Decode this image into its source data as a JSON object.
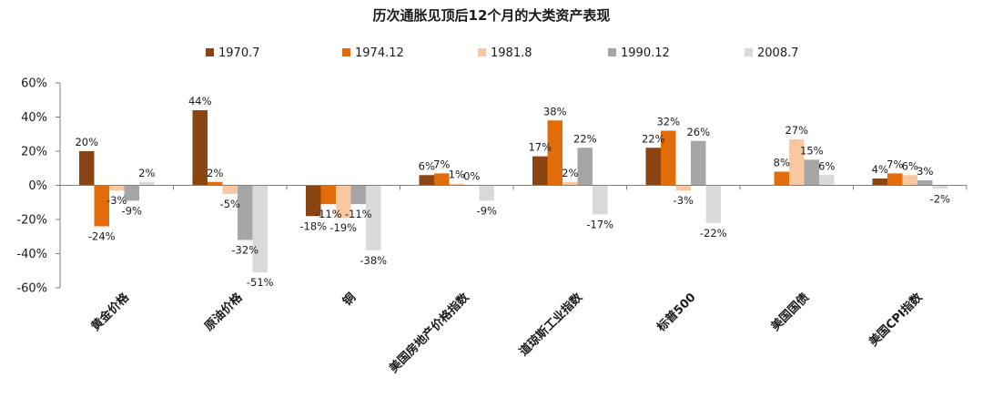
{
  "chart_data": {
    "type": "bar",
    "title": "历次通胀见顶后12个月的大类资产表现",
    "categories": [
      "黄金价格",
      "原油价格",
      "铜",
      "美国房地产价格指数",
      "道琼斯工业指数",
      "标普500",
      "美国国债",
      "美国CPI指数"
    ],
    "series": [
      {
        "name": "1970.7",
        "color": "#8B4513",
        "values": [
          20,
          44,
          -18,
          6,
          17,
          22,
          0,
          4
        ]
      },
      {
        "name": "1974.12",
        "color": "#E36C0A",
        "values": [
          -24,
          2,
          -11,
          7,
          38,
          32,
          8,
          7
        ]
      },
      {
        "name": "1981.8",
        "color": "#FAC8A0",
        "values": [
          -3,
          -5,
          -19,
          1,
          2,
          -3,
          27,
          6
        ]
      },
      {
        "name": "1990.12",
        "color": "#A6A6A6",
        "values": [
          -9,
          -32,
          -11,
          0,
          22,
          26,
          15,
          3
        ]
      },
      {
        "name": "2008.7",
        "color": "#D9D9D9",
        "values": [
          2,
          -51,
          -38,
          -9,
          -17,
          -22,
          6,
          -2
        ]
      }
    ],
    "labels": [
      [
        "20%",
        "44%",
        "-18%",
        "6%",
        "17%",
        "22%",
        "",
        "4%"
      ],
      [
        "-24%",
        "2%",
        "-11%",
        "7%",
        "38%",
        "32%",
        "8%",
        "7%"
      ],
      [
        "-3%",
        "-5%",
        "-19%",
        "1%",
        "2%",
        "-3%",
        "27%",
        "6%"
      ],
      [
        "-9%",
        "-32%",
        "-11%",
        "0%",
        "22%",
        "26%",
        "15%",
        "3%"
      ],
      [
        "2%",
        "-51%",
        "-38%",
        "-9%",
        "-17%",
        "-22%",
        "6%",
        "-2%"
      ]
    ],
    "ylim": [
      -60,
      60
    ],
    "yticks": [
      -60,
      -40,
      -20,
      0,
      20,
      40,
      60
    ],
    "ytick_labels": [
      "-60%",
      "-40%",
      "-20%",
      "0%",
      "20%",
      "40%",
      "60%"
    ],
    "legend_position": "top",
    "grid": false
  }
}
